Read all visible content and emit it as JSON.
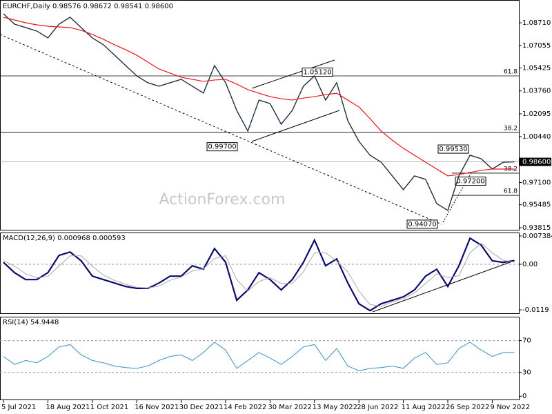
{
  "chart_data": [
    {
      "type": "line",
      "header": "EURCHF,Daily  0.98576 0.98672 0.98541 0.98600",
      "watermark": "ActionForex.com",
      "categories": [
        "5 Jul 2021",
        null,
        null,
        null,
        "18 Aug 2021",
        null,
        null,
        null,
        "1 Oct 2021",
        null,
        null,
        null,
        "16 Nov 2021",
        null,
        null,
        null,
        "30 Dec 2021",
        null,
        null,
        null,
        "14 Feb 2022",
        null,
        null,
        null,
        "30 Mar 2022",
        null,
        null,
        null,
        "13 May 2022",
        null,
        null,
        null,
        "28 Jun 2022",
        null,
        null,
        null,
        "11 Aug 2022",
        null,
        null,
        null,
        "26 Sep 2022",
        null,
        null,
        null,
        "9 Nov 2022",
        null,
        null
      ],
      "series": [
        {
          "color": "#1f2d3d",
          "values": [
            1.0936,
            1.0861,
            1.0836,
            1.0811,
            1.0761,
            1.0861,
            1.0911,
            1.0836,
            1.0761,
            1.0711,
            1.0636,
            1.056,
            1.0485,
            1.0435,
            1.041,
            1.0435,
            1.046,
            1.041,
            1.036,
            1.056,
            1.0435,
            1.0234,
            1.0084,
            1.0309,
            1.0284,
            1.0134,
            1.0234,
            1.041,
            1.0485,
            1.0309,
            1.0435,
            1.0159,
            1.0009,
            0.9908,
            0.9858,
            0.9758,
            0.9658,
            0.9758,
            0.9733,
            0.9557,
            0.9507,
            0.9758,
            0.9908,
            0.9883,
            0.9808,
            0.9858,
            0.986
          ]
        },
        {
          "color": "#e8141b",
          "values": [
            1.0911,
            1.0891,
            1.0871,
            1.0856,
            1.0846,
            1.0841,
            1.0836,
            1.0816,
            1.0786,
            1.0751,
            1.0711,
            1.0675,
            1.0635,
            1.0585,
            1.0535,
            1.0505,
            1.0475,
            1.046,
            1.0445,
            1.0455,
            1.046,
            1.0425,
            1.0385,
            1.0359,
            1.0334,
            1.0319,
            1.0309,
            1.0324,
            1.0334,
            1.0349,
            1.0359,
            1.0309,
            1.0259,
            1.0174,
            1.0084,
            1.0018,
            0.9958,
            0.9908,
            0.9858,
            0.9808,
            0.9758,
            0.9768,
            0.9783,
            0.9798,
            0.9808,
            0.9808,
            0.9808
          ]
        }
      ],
      "ylim": [
        0.93665,
        1.10365
      ],
      "yticks": [
        {
          "value": 1.0871,
          "label": "1.08710"
        },
        {
          "value": 1.07055,
          "label": "1.07055"
        },
        {
          "value": 1.05425,
          "label": "1.05425"
        },
        {
          "value": 1.0376,
          "label": "1.03760"
        },
        {
          "value": 1.02095,
          "label": "1.02095"
        },
        {
          "value": 1.0044,
          "label": "1.00440"
        },
        {
          "value": 0.971,
          "label": "0.97100"
        },
        {
          "value": 0.95485,
          "label": "0.95485"
        },
        0.93815
      ],
      "last": {
        "value": 0.986,
        "label": "0.98600"
      },
      "levels": [
        {
          "value": 1.0485,
          "label": "61.8"
        },
        {
          "value": 1.0074,
          "label": "38.2"
        },
        {
          "value": 0.9778,
          "label": "38.2"
        },
        {
          "value": 0.9617,
          "label": "61.8"
        }
      ],
      "annotations": [
        {
          "value": 1.0512,
          "label": "1.05120"
        },
        {
          "value": 0.997,
          "label": "0.99700"
        },
        {
          "value": 0.9953,
          "label": "0.99530"
        },
        {
          "value": 0.972,
          "label": "0.97200"
        },
        {
          "value": 0.9407,
          "label": "0.94070"
        }
      ]
    },
    {
      "type": "line",
      "header": "MACD(12,26,9) 0.000968 0.000593",
      "series": [
        {
          "color": "#0a0a6e",
          "values": [
            0.0005,
            -0.0022,
            -0.004,
            -0.004,
            -0.0022,
            0.0023,
            0.0032,
            0.0009,
            -0.0031,
            -0.004,
            -0.0049,
            -0.0058,
            -0.0063,
            -0.0063,
            -0.0049,
            -0.0031,
            -0.0031,
            -0.0004,
            -0.0013,
            0.0041,
            0.0005,
            -0.0094,
            -0.0067,
            -0.0022,
            -0.004,
            -0.0067,
            -0.004,
            0.0005,
            0.0063,
            -0.0004,
            0.0014,
            -0.0049,
            -0.0103,
            -0.0121,
            -0.0103,
            -0.0094,
            -0.0085,
            -0.0067,
            -0.0031,
            -0.0013,
            -0.0058,
            -0.0004,
            0.0068,
            0.005,
            0.0009,
            0.0005,
            0.000968
          ]
        },
        {
          "color": "#aaaaaa",
          "values": [
            0.001,
            -0.0005,
            -0.0025,
            -0.0035,
            -0.0032,
            -0.0005,
            0.0022,
            0.0022,
            -0.0005,
            -0.0028,
            -0.0042,
            -0.0052,
            -0.006,
            -0.0062,
            -0.0057,
            -0.0042,
            -0.0033,
            -0.0018,
            -0.0012,
            0.0015,
            0.0022,
            -0.004,
            -0.007,
            -0.0045,
            -0.0035,
            -0.005,
            -0.005,
            -0.002,
            0.003,
            0.003,
            0.0008,
            -0.002,
            -0.007,
            -0.0105,
            -0.011,
            -0.0098,
            -0.009,
            -0.0075,
            -0.005,
            -0.0025,
            -0.0035,
            -0.003,
            0.003,
            0.0055,
            0.003,
            0.001,
            0.000593
          ]
        }
      ],
      "ylim": [
        -0.01297,
        0.00828
      ],
      "yticks": [
        0.007384,
        {
          "value": 0,
          "label": "0.00"
        },
        -0.0119
      ]
    },
    {
      "type": "line",
      "header": "RSI(14) 54.9448",
      "series": [
        {
          "color": "#3a8fc8",
          "values": [
            50,
            40,
            45,
            42,
            50,
            62,
            65,
            52,
            45,
            42,
            38,
            36,
            35,
            38,
            45,
            50,
            52,
            45,
            55,
            68,
            58,
            35,
            45,
            55,
            48,
            40,
            50,
            62,
            65,
            45,
            60,
            38,
            32,
            35,
            36,
            38,
            35,
            48,
            55,
            40,
            42,
            60,
            68,
            58,
            50,
            55,
            54.9448
          ]
        }
      ],
      "ylim": [
        -5,
        100
      ],
      "yticks": [
        70,
        30,
        0
      ],
      "levels": [
        70,
        30
      ]
    }
  ]
}
